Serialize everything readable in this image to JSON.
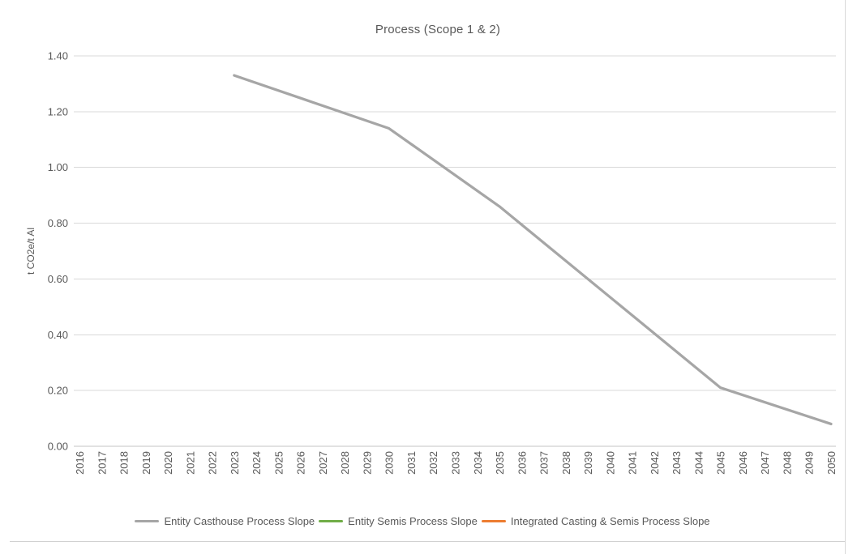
{
  "chart_data": {
    "type": "line",
    "title": "Process (Scope 1 & 2)",
    "xlabel": "",
    "ylabel": "t CO2e/t Al",
    "ylim": [
      0.0,
      1.4
    ],
    "ytick_step": 0.2,
    "ytick_labels": [
      "0.00",
      "0.20",
      "0.40",
      "0.60",
      "0.80",
      "1.00",
      "1.20",
      "1.40"
    ],
    "x_categories": [
      "2016",
      "2017",
      "2018",
      "2019",
      "2020",
      "2021",
      "2022",
      "2023",
      "2024",
      "2025",
      "2026",
      "2027",
      "2028",
      "2029",
      "2030",
      "2031",
      "2032",
      "2033",
      "2034",
      "2035",
      "2036",
      "2037",
      "2038",
      "2039",
      "2040",
      "2041",
      "2042",
      "2043",
      "2044",
      "2045",
      "2046",
      "2047",
      "2048",
      "2049",
      "2050"
    ],
    "grid": true,
    "legend_position": "bottom",
    "series": [
      {
        "name": "Entity Casthouse Process Slope",
        "color": "#a6a6a6",
        "points": [
          {
            "x": 2023,
            "y": 1.33
          },
          {
            "x": 2030,
            "y": 1.14
          },
          {
            "x": 2035,
            "y": 0.86
          },
          {
            "x": 2045,
            "y": 0.21
          },
          {
            "x": 2050,
            "y": 0.08
          }
        ]
      },
      {
        "name": "Entity Semis Process Slope",
        "color": "#70ad47",
        "points": []
      },
      {
        "name": "Integrated Casting & Semis Process Slope",
        "color": "#ed7d31",
        "points": []
      }
    ]
  },
  "colors": {
    "text": "#595959",
    "gridline": "#d9d9d9",
    "axis_line": "#c6c6c6",
    "chart_border": "#d9d9d9"
  }
}
